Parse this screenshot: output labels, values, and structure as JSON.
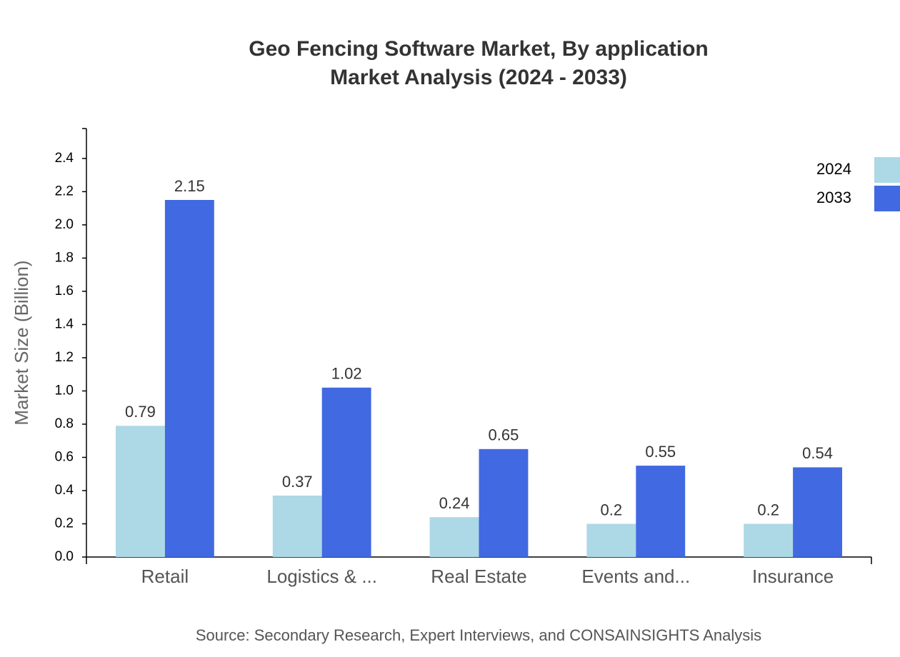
{
  "chart_data": {
    "type": "bar",
    "title": [
      "Geo Fencing Software Market, By application",
      "Market Analysis (2024 - 2033)"
    ],
    "y_label": "Market Size (Billion)",
    "source": "Source: Secondary Research, Expert Interviews, and CONSAINSIGHTS Analysis",
    "categories": [
      "Retail",
      "Logistics & ...",
      "Real Estate",
      "Events and...",
      "Insurance"
    ],
    "series": [
      {
        "name": "2024",
        "color": "#add8e6",
        "values": [
          0.79,
          0.37,
          0.24,
          0.2,
          0.2
        ]
      },
      {
        "name": "2033",
        "color": "#4169e1",
        "values": [
          2.15,
          1.02,
          0.65,
          0.55,
          0.54
        ]
      }
    ],
    "ylim": [
      0,
      2.58
    ],
    "yticks": [
      {
        "value": 0,
        "label": "0.0"
      },
      {
        "value": 0.2,
        "label": "0.2"
      },
      {
        "value": 0.4,
        "label": "0.4"
      },
      {
        "value": 0.6,
        "label": "0.6"
      },
      {
        "value": 0.8,
        "label": "0.8"
      },
      {
        "value": 1,
        "label": "1.0"
      },
      {
        "value": 1.2,
        "label": "1.2"
      },
      {
        "value": 1.4,
        "label": "1.4"
      },
      {
        "value": 1.6,
        "label": "1.6"
      },
      {
        "value": 1.8,
        "label": "1.8"
      },
      {
        "value": 2,
        "label": "2.0"
      },
      {
        "value": 2.2,
        "label": "2.2"
      },
      {
        "value": 2.4,
        "label": "2.4"
      }
    ],
    "grid": false,
    "legend": "top-right"
  }
}
